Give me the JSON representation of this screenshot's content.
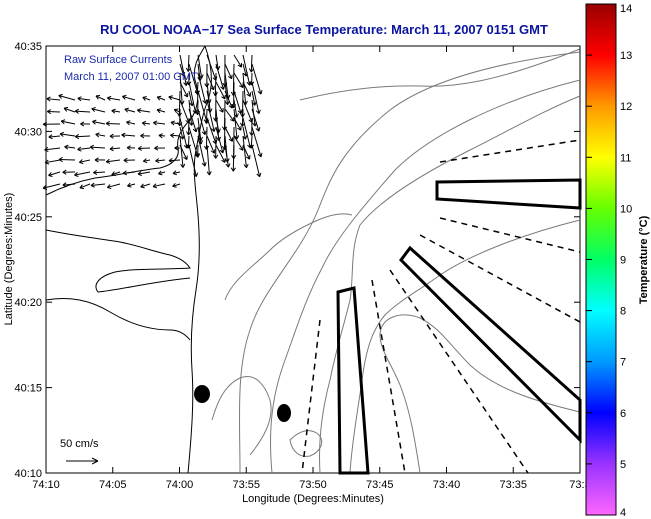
{
  "chart_data": {
    "type": "map",
    "title": "RU COOL  NOAA−17  Sea Surface Temperature:  March 11, 2007 0151 GMT",
    "annotations": [
      "Raw Surface Currents",
      "March 11, 2007 01:00 GMT"
    ],
    "xlabel": "Longitude (Degrees:Minutes)",
    "ylabel": "Latitude (Degrees:Minutes)",
    "x_ticks": [
      "74:10",
      "74:05",
      "74:00",
      "73:55",
      "73:50",
      "73:45",
      "73:40",
      "73:35",
      "73:3"
    ],
    "y_ticks": [
      "40:10",
      "40:15",
      "40:20",
      "40:25",
      "40:30",
      "40:35"
    ],
    "colorbar": {
      "label": "Temperature (°C)",
      "range": [
        4,
        14
      ],
      "ticks": [
        "4",
        "5",
        "6",
        "7",
        "8",
        "9",
        "10",
        "11",
        "12",
        "13",
        "14"
      ],
      "colors": [
        "#ff66ff",
        "#9933ff",
        "#0000ff",
        "#0099ff",
        "#00ffff",
        "#00ff66",
        "#66ff00",
        "#ffff00",
        "#ff9900",
        "#ff0000",
        "#990000"
      ]
    },
    "scale_label": "50 cm/s",
    "grid": false
  }
}
